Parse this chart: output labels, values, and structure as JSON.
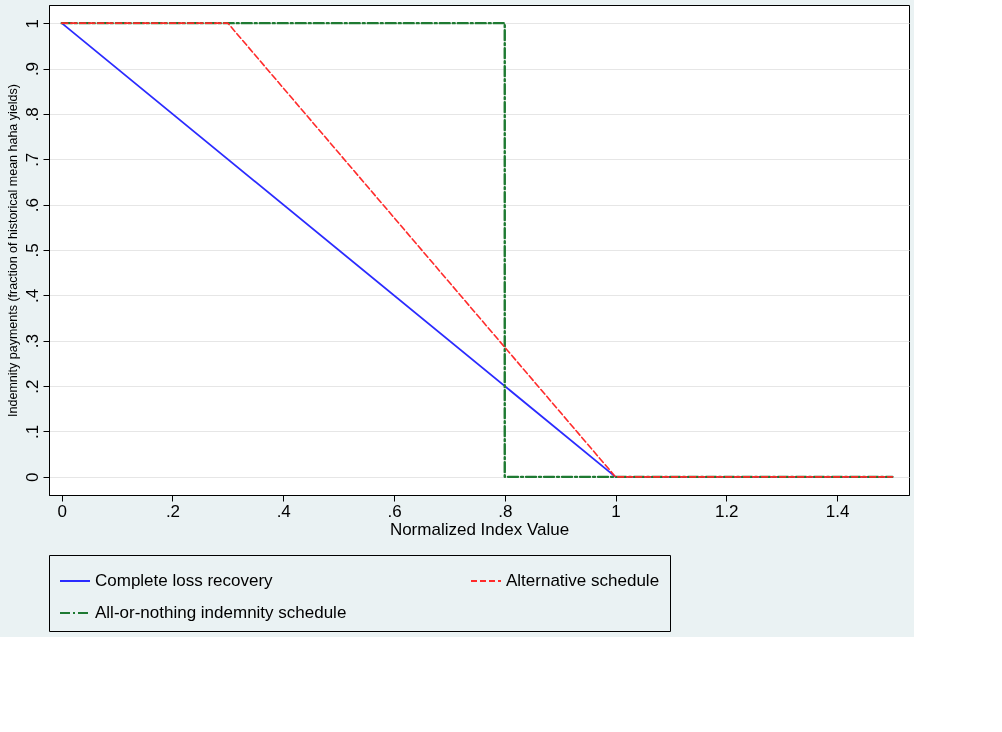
{
  "chart_data": {
    "type": "line",
    "xlabel": "Normalized Index Value",
    "ylabel": "Indemnity payments (fraction of historical mean haha yields)",
    "xlim": [
      -0.023,
      1.53
    ],
    "ylim": [
      -0.04,
      1.04
    ],
    "xticks": [
      0,
      {
        "value": 0.2,
        "label": ".2"
      },
      {
        "value": 0.4,
        "label": ".4"
      },
      {
        "value": 0.6,
        "label": ".6"
      },
      {
        "value": 0.8,
        "label": ".8"
      },
      1,
      1.2,
      1.4
    ],
    "yticks": [
      0,
      {
        "value": 0.1,
        "label": ".1"
      },
      {
        "value": 0.2,
        "label": ".2"
      },
      {
        "value": 0.3,
        "label": ".3"
      },
      {
        "value": 0.4,
        "label": ".4"
      },
      {
        "value": 0.5,
        "label": ".5"
      },
      {
        "value": 0.6,
        "label": ".6"
      },
      {
        "value": 0.7,
        "label": ".7"
      },
      {
        "value": 0.8,
        "label": ".8"
      },
      {
        "value": 0.9,
        "label": ".9"
      },
      1
    ],
    "grid": "y",
    "legend": "bottom",
    "marker": "none",
    "series": [
      {
        "name": "Complete loss recovery",
        "color": "#2b2bff",
        "line_style": "solid",
        "x": [
          0,
          1,
          1.5
        ],
        "values": [
          1,
          0,
          0
        ]
      },
      {
        "name": "Alternative schedule",
        "color": "#ff2a2a",
        "line_style": "dashed",
        "x": [
          0,
          0.3,
          1,
          1.5
        ],
        "values": [
          1,
          1,
          0,
          0
        ]
      },
      {
        "name": "All-or-nothing indemnity schedule",
        "color": "#1e7a32",
        "line_style": "dashdot",
        "x": [
          0,
          0.8,
          0.8,
          1.5
        ],
        "values": [
          1,
          1,
          0,
          0
        ]
      }
    ]
  }
}
